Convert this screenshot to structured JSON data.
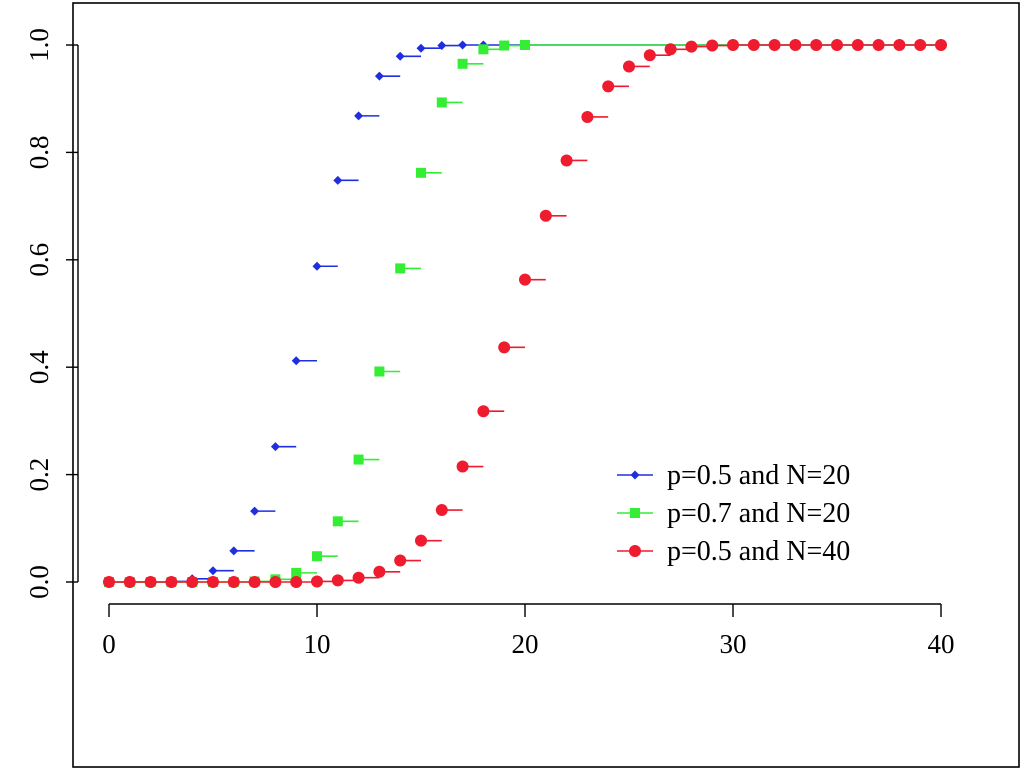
{
  "chart_data": {
    "type": "scatter",
    "plot_style": "step-cdf",
    "title": "",
    "xlabel": "",
    "ylabel": "",
    "xlim": [
      0,
      40
    ],
    "ylim": [
      0,
      1
    ],
    "x_ticks": [
      0,
      10,
      20,
      30,
      40
    ],
    "y_ticks": [
      0.0,
      0.2,
      0.4,
      0.6,
      0.8,
      1.0
    ],
    "x_tick_labels": [
      "0",
      "10",
      "20",
      "30",
      "40"
    ],
    "y_tick_labels": [
      "0.0",
      "0.2",
      "0.4",
      "0.6",
      "0.8",
      "1.0"
    ],
    "grid": false,
    "legend_position": "lower-right",
    "series": [
      {
        "name": "p=0.5 and N=20",
        "color": "#1f2fe0",
        "marker": "diamond",
        "x": [
          0,
          1,
          2,
          3,
          4,
          5,
          6,
          7,
          8,
          9,
          10,
          11,
          12,
          13,
          14,
          15,
          16,
          17,
          18,
          19,
          20
        ],
        "y": [
          0.0,
          0.0,
          0.0,
          0.001,
          0.006,
          0.021,
          0.058,
          0.132,
          0.252,
          0.412,
          0.588,
          0.748,
          0.868,
          0.942,
          0.979,
          0.994,
          0.999,
          1.0,
          1.0,
          1.0,
          1.0
        ]
      },
      {
        "name": "p=0.7 and N=20",
        "color": "#33ee33",
        "marker": "square",
        "x": [
          0,
          1,
          2,
          3,
          4,
          5,
          6,
          7,
          8,
          9,
          10,
          11,
          12,
          13,
          14,
          15,
          16,
          17,
          18,
          19,
          20
        ],
        "y": [
          0.0,
          0.0,
          0.0,
          0.0,
          0.0,
          0.0,
          0.0,
          0.001,
          0.005,
          0.017,
          0.048,
          0.113,
          0.228,
          0.392,
          0.584,
          0.762,
          0.893,
          0.965,
          0.992,
          0.999,
          1.0
        ]
      },
      {
        "name": "p=0.5 and N=40",
        "color": "#ee1c2e",
        "marker": "circle",
        "x": [
          0,
          1,
          2,
          3,
          4,
          5,
          6,
          7,
          8,
          9,
          10,
          11,
          12,
          13,
          14,
          15,
          16,
          17,
          18,
          19,
          20,
          21,
          22,
          23,
          24,
          25,
          26,
          27,
          28,
          29,
          30,
          31,
          32,
          33,
          34,
          35,
          36,
          37,
          38,
          39,
          40
        ],
        "y": [
          0.0,
          0.0,
          0.0,
          0.0,
          0.0,
          0.0,
          0.0,
          0.0,
          0.0,
          0.0,
          0.001,
          0.003,
          0.008,
          0.019,
          0.04,
          0.077,
          0.134,
          0.215,
          0.318,
          0.437,
          0.563,
          0.682,
          0.785,
          0.866,
          0.923,
          0.96,
          0.981,
          0.992,
          0.997,
          0.999,
          1.0,
          1.0,
          1.0,
          1.0,
          1.0,
          1.0,
          1.0,
          1.0,
          1.0,
          1.0,
          1.0
        ]
      }
    ]
  }
}
